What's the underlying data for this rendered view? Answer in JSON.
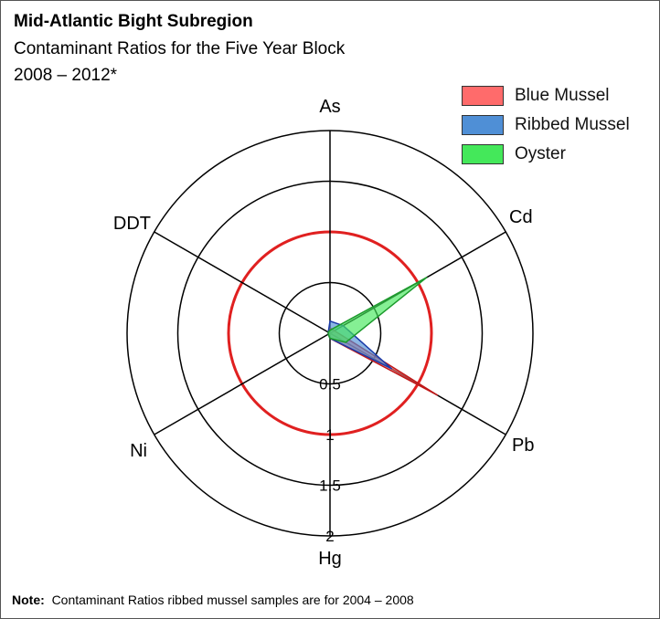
{
  "title": "Mid-Atlantic Bight Subregion",
  "subtitle": "Contaminant Ratios for the Five Year Block",
  "years": "2008 – 2012*",
  "note": {
    "label": "Note:",
    "text": "Contaminant Ratios ribbed mussel samples are for 2004 – 2008"
  },
  "colors": {
    "blue_mussel": "#ff6b6b",
    "ribbed_mussel": "#4f8fd6",
    "oyster": "#44e85a",
    "reference_ring": "#e02020"
  },
  "chart_data": {
    "type": "radar",
    "axes": [
      "As",
      "Cd",
      "Pb",
      "Hg",
      "Ni",
      "DDT"
    ],
    "rlim": [
      0,
      2
    ],
    "ticks": [
      "0.5",
      "1",
      "1.5",
      "2"
    ],
    "reference_ring_value": 1,
    "legend_position": "top-right",
    "series": [
      {
        "name": "Blue Mussel",
        "values": [
          0.05,
          0.05,
          1.22,
          0.05,
          0.02,
          0.02
        ]
      },
      {
        "name": "Ribbed Mussel",
        "values": [
          0.12,
          0.15,
          0.7,
          0.05,
          0.02,
          0.02
        ]
      },
      {
        "name": "Oyster",
        "values": [
          0.03,
          1.1,
          0.18,
          0.05,
          0.02,
          0.02
        ]
      }
    ]
  }
}
